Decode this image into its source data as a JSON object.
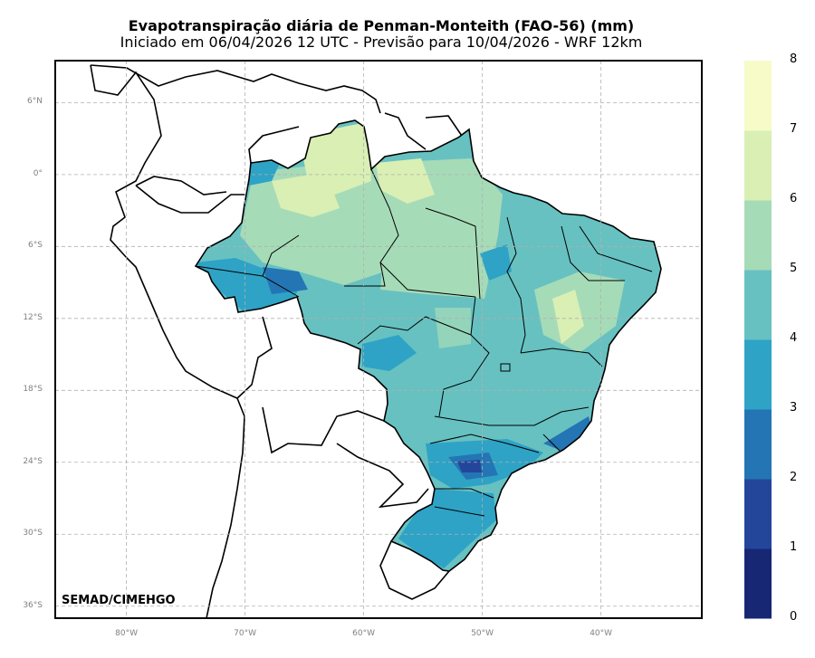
{
  "title": "Evapotranspiração diária de Penman-Monteith (FAO-56) (mm)",
  "subtitle": "Iniciado em 06/04/2026 12 UTC - Previsão para 10/04/2026 - WRF 12km",
  "credit": "SEMAD/CIMEHGO",
  "map": {
    "extent": {
      "lon": [
        -86,
        -31.5
      ],
      "lat": [
        -37,
        9.5
      ]
    },
    "grid": true,
    "lat_ticks": [
      {
        "value": 6,
        "label": "6°N"
      },
      {
        "value": 0,
        "label": "0°"
      },
      {
        "value": -6,
        "label": "6°S"
      },
      {
        "value": -12,
        "label": "12°S"
      },
      {
        "value": -18,
        "label": "18°S"
      },
      {
        "value": -24,
        "label": "24°S"
      },
      {
        "value": -30,
        "label": "30°S"
      },
      {
        "value": -36,
        "label": "36°S"
      }
    ],
    "lon_ticks": [
      {
        "value": -80,
        "label": "80°W"
      },
      {
        "value": -70,
        "label": "70°W"
      },
      {
        "value": -60,
        "label": "60°W"
      },
      {
        "value": -50,
        "label": "50°W"
      },
      {
        "value": -40,
        "label": "40°W"
      }
    ]
  },
  "colorbar": {
    "levels": [
      "0",
      "1",
      "2",
      "3",
      "4",
      "5",
      "6",
      "7",
      "8"
    ],
    "colors": [
      "#172773",
      "#23469b",
      "#2475b4",
      "#2ea3c6",
      "#67c1c1",
      "#a6dbb8",
      "#d9efb4",
      "#f6fbc8"
    ]
  }
}
